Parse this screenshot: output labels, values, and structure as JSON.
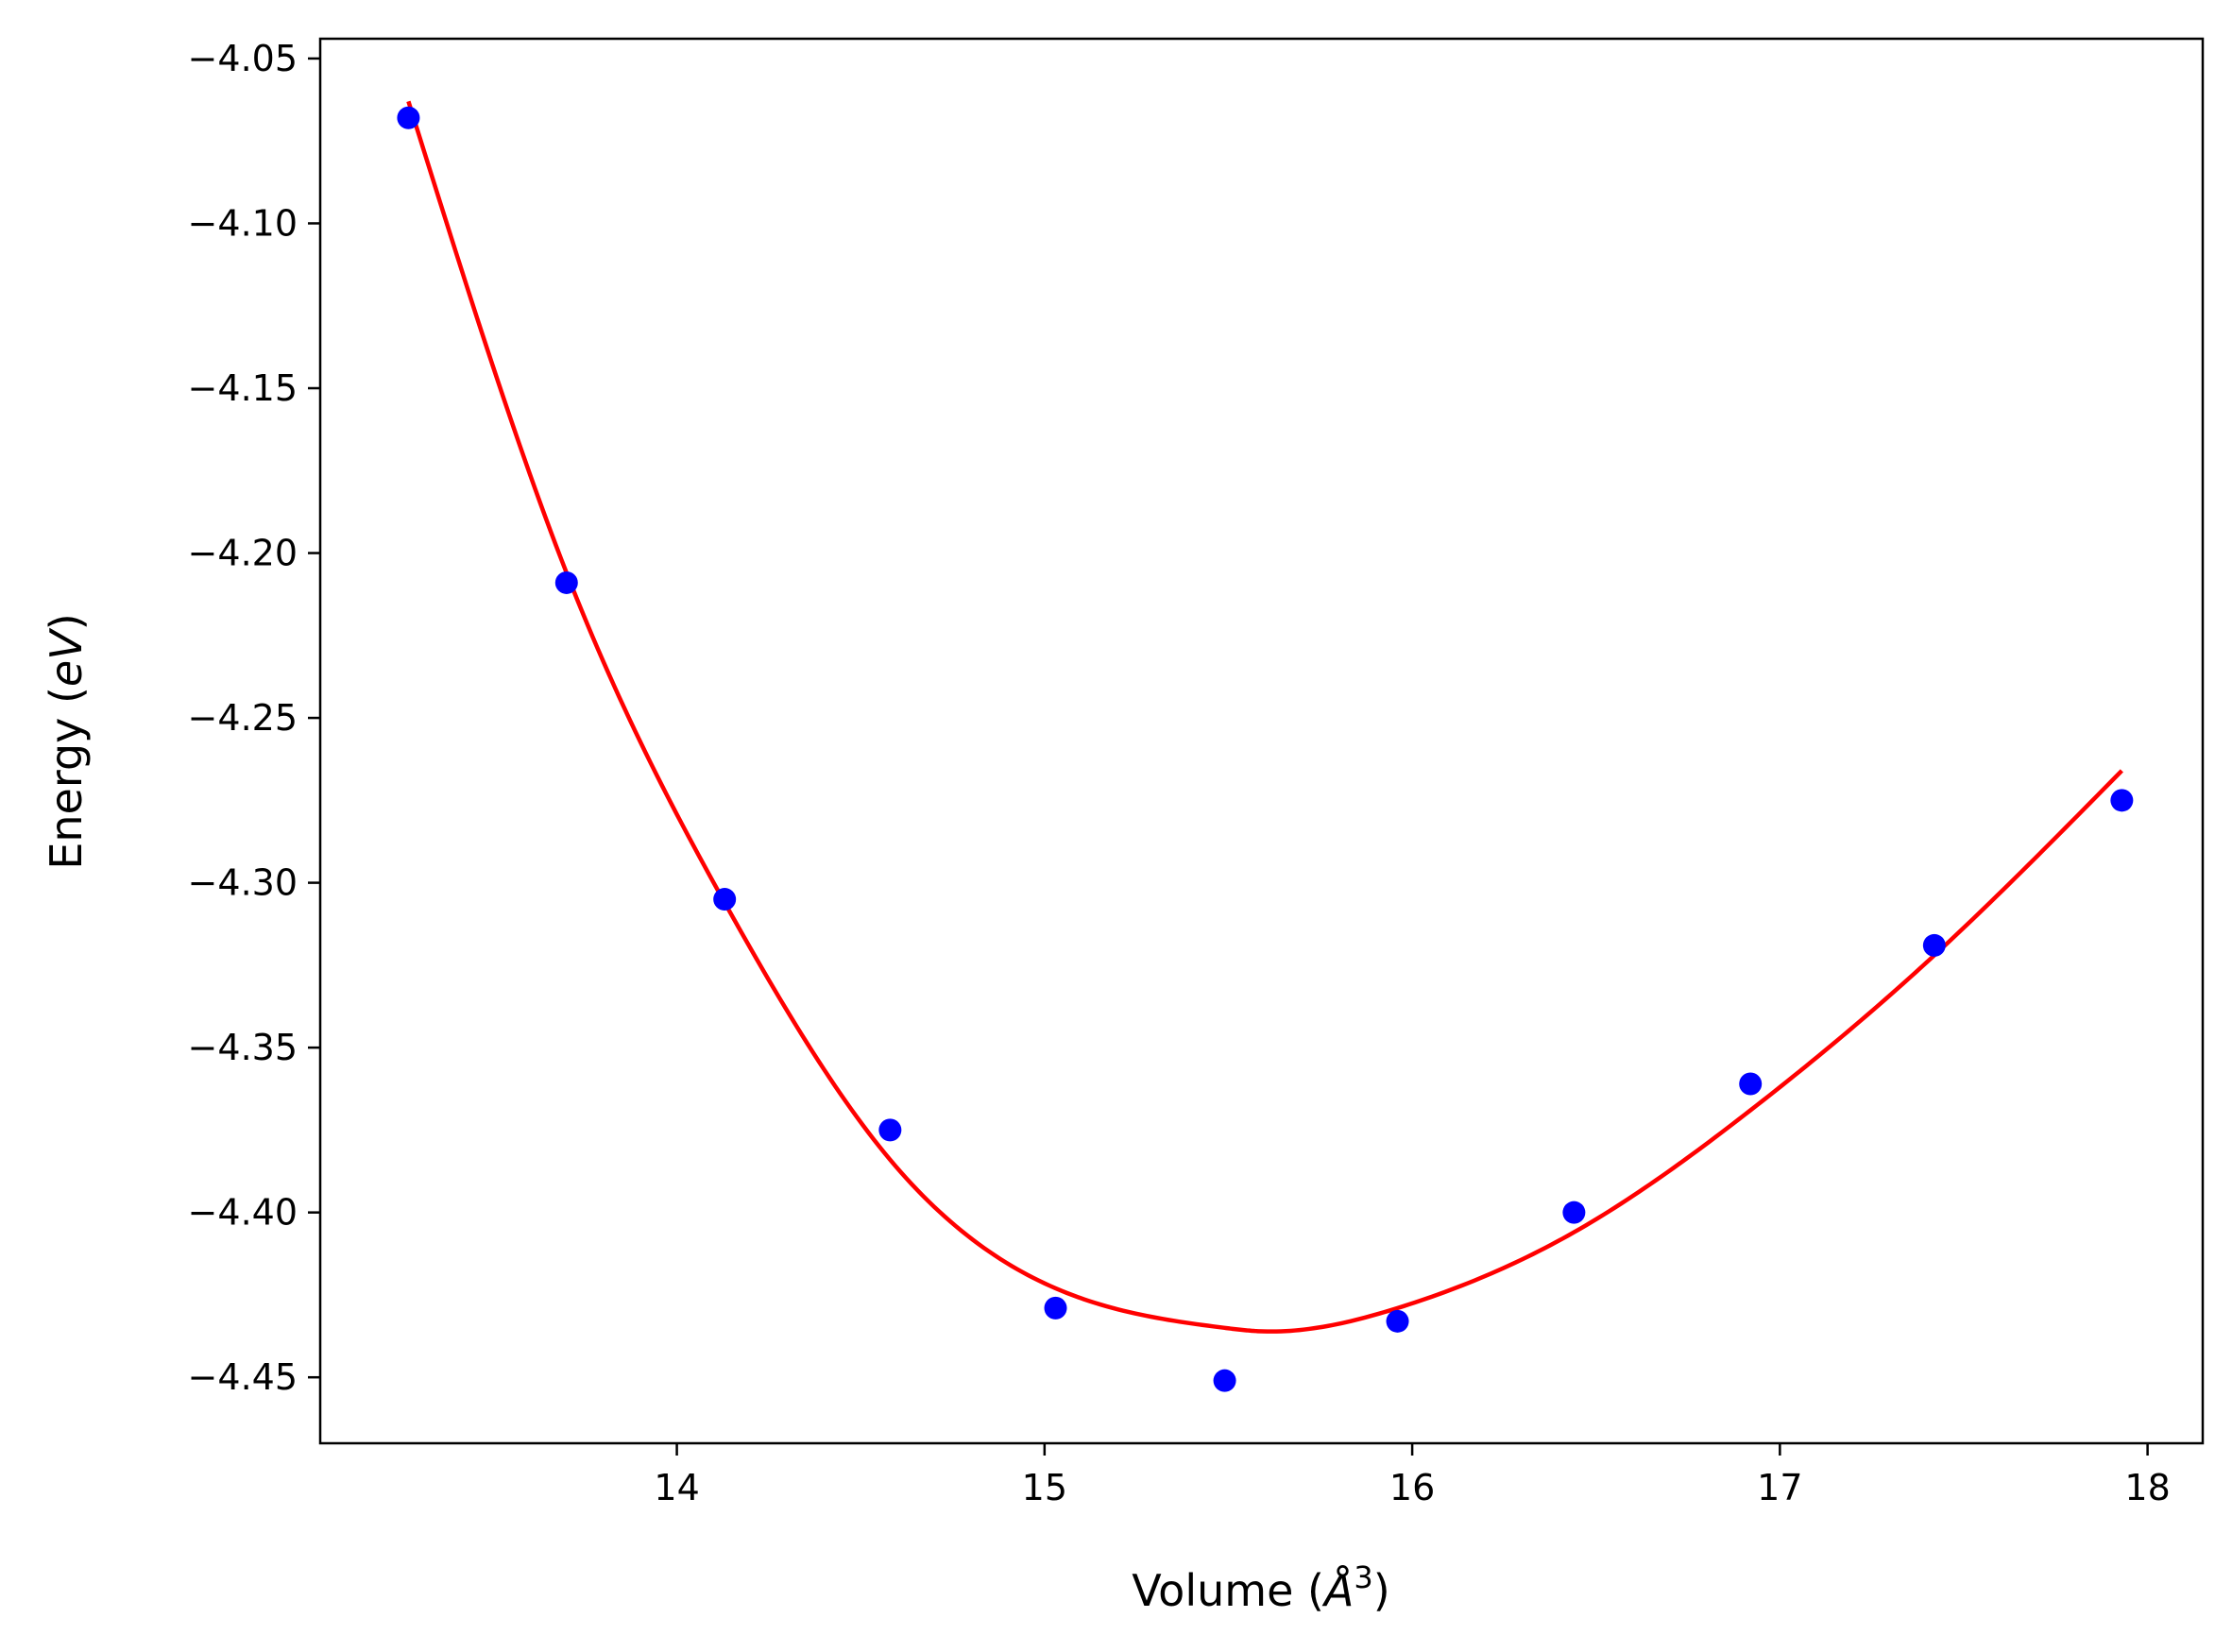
{
  "chart_data": {
    "type": "scatter",
    "title": "",
    "xlabel": "Volume (Å³)",
    "ylabel": "Energy (eV)",
    "xlabel_parts": {
      "pre": "Volume (",
      "unit": "Å",
      "sup": "3",
      "post": ")"
    },
    "ylabel_parts": {
      "pre": "Energy (",
      "unit": "eV",
      "post": ")"
    },
    "xlim": [
      13.03,
      18.15
    ],
    "ylim": [
      -4.47,
      -4.044
    ],
    "xticks": [
      14,
      15,
      16,
      17,
      18
    ],
    "xtick_labels": [
      "14",
      "15",
      "16",
      "17",
      "18"
    ],
    "yticks": [
      -4.05,
      -4.1,
      -4.15,
      -4.2,
      -4.25,
      -4.3,
      -4.35,
      -4.4,
      -4.45
    ],
    "ytick_labels": [
      "−4.05",
      "−4.10",
      "−4.15",
      "−4.20",
      "−4.25",
      "−4.30",
      "−4.35",
      "−4.40",
      "−4.45"
    ],
    "grid": false,
    "legend": "none",
    "series": [
      {
        "kind": "points",
        "color": "#0000ff",
        "x": [
          13.27,
          13.7,
          14.13,
          14.58,
          15.03,
          15.49,
          15.96,
          16.44,
          16.92,
          17.42,
          17.93
        ],
        "y": [
          -4.068,
          -4.209,
          -4.305,
          -4.375,
          -4.429,
          -4.451,
          -4.433,
          -4.4,
          -4.361,
          -4.319,
          -4.275
        ]
      },
      {
        "kind": "fit-line",
        "color": "#ff0000",
        "x": [
          13.27,
          13.7,
          14.13,
          14.58,
          15.03,
          15.49,
          15.58,
          15.96,
          16.44,
          16.92,
          17.42,
          17.93
        ],
        "y": [
          -4.063,
          -4.206,
          -4.306,
          -4.384,
          -4.423,
          -4.435,
          -4.436,
          -4.429,
          -4.406,
          -4.369,
          -4.322,
          -4.266
        ]
      }
    ]
  }
}
